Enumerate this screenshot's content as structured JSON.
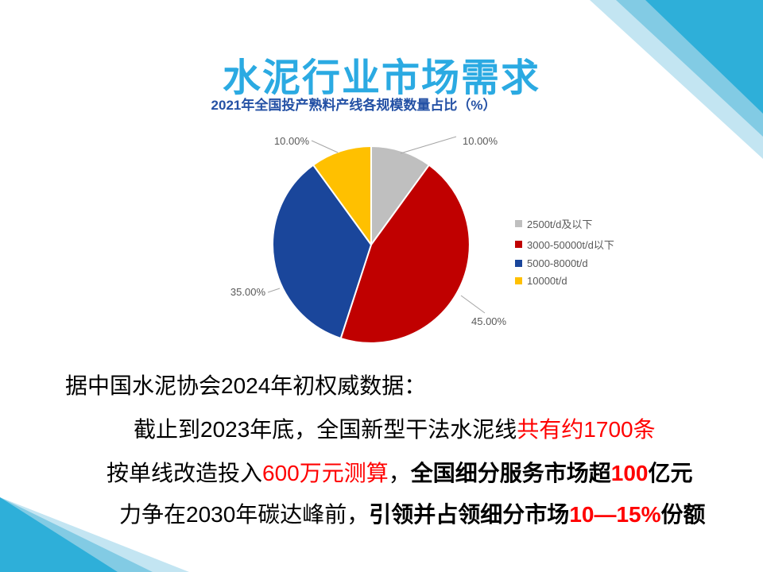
{
  "slide_title": "水泥行业市场需求",
  "theme": {
    "title_color": "#2BAAE2",
    "chart_title_color": "#2451A5",
    "body_accent_color": "#FF0000",
    "corner_colors": [
      "#C3E5F2",
      "#82CBE4",
      "#2EAFD9"
    ]
  },
  "chart_data": {
    "type": "pie",
    "title": "2021年全国投产熟料产线各规模数量占比（%）",
    "unit": "%",
    "start_angle_deg": 0,
    "direction": "clockwise",
    "legend_position": "right",
    "label_color": "#595959",
    "slices": [
      {
        "legend": "2500t/d及以下",
        "value": 10.0,
        "label": "10.00%",
        "color": "#BFBFBF"
      },
      {
        "legend": "3000-50000t/d以下",
        "value": 45.0,
        "label": "45.00%",
        "color": "#C00000"
      },
      {
        "legend": "5000-8000t/d",
        "value": 35.0,
        "label": "35.00%",
        "color": "#1A469B"
      },
      {
        "legend": "10000t/d",
        "value": 10.0,
        "label": "10.00%",
        "color": "#FFC000"
      }
    ]
  },
  "body": {
    "intro": "据中国水泥协会2024年初权威数据：",
    "lines": [
      {
        "segments": [
          {
            "t": "截止到2023年底，全国新型干法水泥线"
          },
          {
            "t": "共有约1700条",
            "red": true
          }
        ]
      },
      {
        "segments": [
          {
            "t": "按单线改造投入"
          },
          {
            "t": "600万元测算",
            "red": true
          },
          {
            "t": "，"
          },
          {
            "t": "全国细分服务市场超",
            "bold": true
          },
          {
            "t": "100",
            "red": true,
            "bold": true
          },
          {
            "t": "亿元",
            "bold": true
          }
        ]
      },
      {
        "segments": [
          {
            "t": "力争在2030年碳达峰前，"
          },
          {
            "t": "引领并占领细分市场",
            "bold": true
          },
          {
            "t": "10—15%",
            "red": true,
            "bold": true
          },
          {
            "t": "份额",
            "bold": true
          }
        ]
      }
    ]
  }
}
